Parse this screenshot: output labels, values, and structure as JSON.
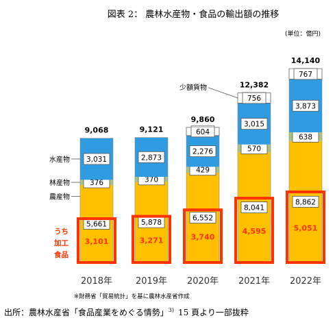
{
  "chart_data": {
    "type": "bar",
    "stacked": true,
    "title": "図表 2： 農林水産物・食品の輸出額の推移",
    "unit_label": "(単位：億円)",
    "categories": [
      "2018年",
      "2019年",
      "2020年",
      "2021年",
      "2022年"
    ],
    "totals": [
      "9,068",
      "9,121",
      "9,860",
      "12,382",
      "14,140"
    ],
    "series": [
      {
        "name": "農産物",
        "values": [
          5661,
          5878,
          6552,
          8041,
          8862
        ],
        "labels": [
          "5,661",
          "5,878",
          "6,552",
          "8,041",
          "8,862"
        ],
        "color": "#FFC000"
      },
      {
        "name": "林産物",
        "values": [
          376,
          370,
          429,
          570,
          638
        ],
        "labels": [
          "376",
          "370",
          "429",
          "570",
          "638"
        ],
        "color": "#A9C47F"
      },
      {
        "name": "水産物",
        "values": [
          3031,
          2873,
          2276,
          3015,
          3873
        ],
        "labels": [
          "3,031",
          "2,873",
          "2,276",
          "3,015",
          "3,873"
        ],
        "color": "#2F9BE0"
      },
      {
        "name": "少額貨物",
        "values": [
          0,
          0,
          604,
          756,
          767
        ],
        "labels": [
          "",
          "",
          "604",
          "756",
          "767"
        ],
        "color": "#FFFFFF"
      }
    ],
    "processed_food": {
      "name": "うち加工食品",
      "values": [
        3101,
        3271,
        3740,
        4595,
        5051
      ],
      "labels": [
        "3,101",
        "3,271",
        "3,740",
        "4,595",
        "5,051"
      ],
      "box_color": "#FF3300"
    },
    "left_labels": [
      "水産物",
      "林産物",
      "農産物"
    ],
    "left_label_processed": [
      "うち",
      "加工",
      "食品"
    ],
    "callout_label": "少額貨物",
    "ylim": [
      0,
      14800
    ],
    "grid": false
  },
  "source_note": "※財務省「貿易統計」を基に農林水産省作成",
  "citation": {
    "text": "出所：農林水産省「食品産業をめぐる情勢」",
    "superscript": "3)",
    "page": "15 頁より一部抜粋"
  },
  "colors": {
    "outline": "#404040",
    "label_box": "#FFFFFF"
  }
}
